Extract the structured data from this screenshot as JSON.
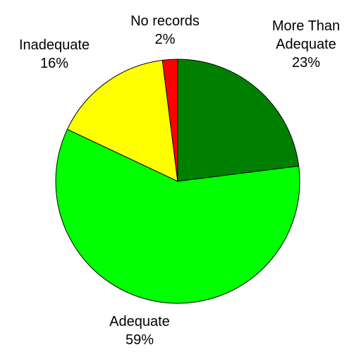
{
  "chart_data": {
    "type": "pie",
    "title": "",
    "legend": "none",
    "slices": [
      {
        "label": "More Than Adequate",
        "label_lines": [
          "More Than",
          "Adequate"
        ],
        "value": 23,
        "value_label": "23%",
        "color": "#008000"
      },
      {
        "label": "Adequate",
        "label_lines": [
          "Adequate"
        ],
        "value": 59,
        "value_label": "59%",
        "color": "#00ff00"
      },
      {
        "label": "Inadequate",
        "label_lines": [
          "Inadequate"
        ],
        "value": 16,
        "value_label": "16%",
        "color": "#ffff00"
      },
      {
        "label": "No records",
        "label_lines": [
          "No records"
        ],
        "value": 2,
        "value_label": "2%",
        "color": "#ff0000"
      }
    ]
  }
}
